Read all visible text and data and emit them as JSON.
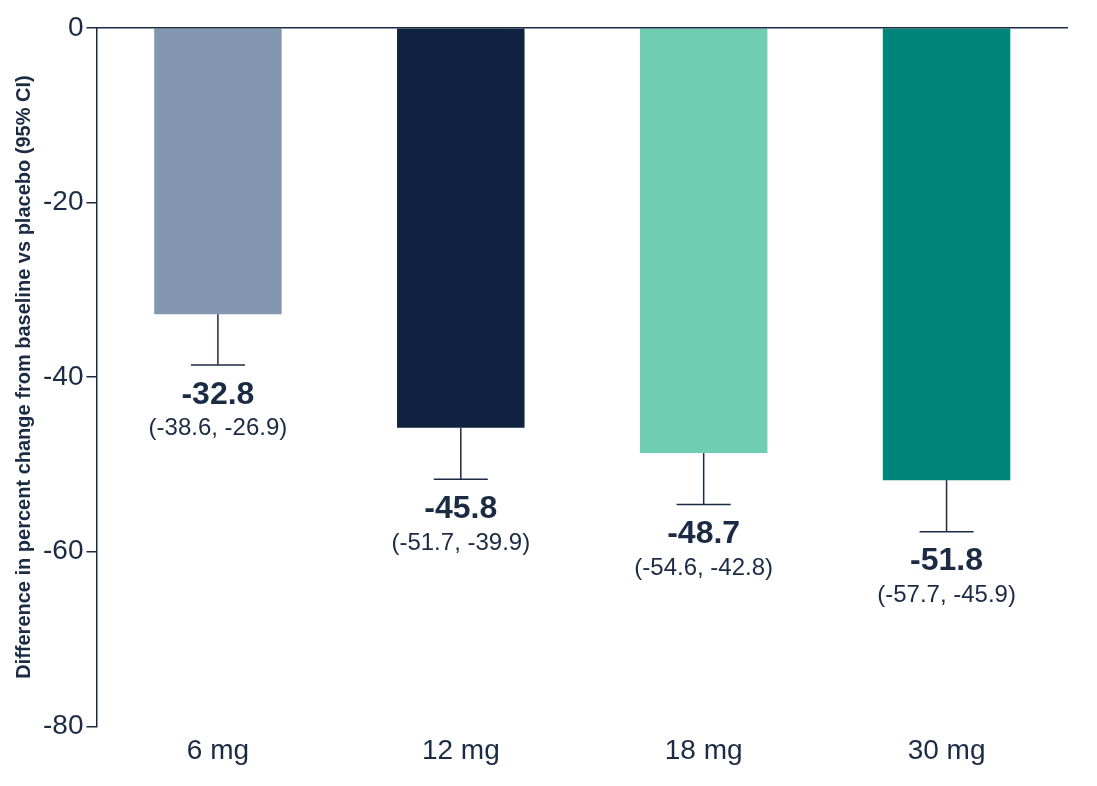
{
  "chart_data": {
    "type": "bar",
    "ylabel": "Difference in percent change from baseline vs placebo (95% CI)",
    "categories": [
      "6 mg",
      "12 mg",
      "18 mg",
      "30 mg"
    ],
    "values": [
      -32.8,
      -45.8,
      -48.7,
      -51.8
    ],
    "colors": [
      "#8497b0",
      "#0f2240",
      "#6fcdb0",
      "#00857a"
    ],
    "errors": [
      [
        -38.6,
        -32.8
      ],
      [
        -51.7,
        -45.8
      ],
      [
        -54.6,
        -48.7
      ],
      [
        -57.7,
        -51.8
      ]
    ],
    "data_labels": true,
    "annotations": [
      {
        "text": "(-38.6, -26.9)",
        "x": "6 mg",
        "y": -38.6
      },
      {
        "text": "(-51.7, -39.9)",
        "x": "12 mg",
        "y": -51.7
      },
      {
        "text": "(-54.6, -42.8)",
        "x": "18 mg",
        "y": -54.6
      },
      {
        "text": "(-57.7, -45.9)",
        "x": "30 mg",
        "y": -57.7
      }
    ],
    "ylim": [
      -80,
      0
    ],
    "yticks": [
      0,
      -20,
      -40,
      -60,
      -80
    ],
    "grid": false,
    "legend": false
  }
}
